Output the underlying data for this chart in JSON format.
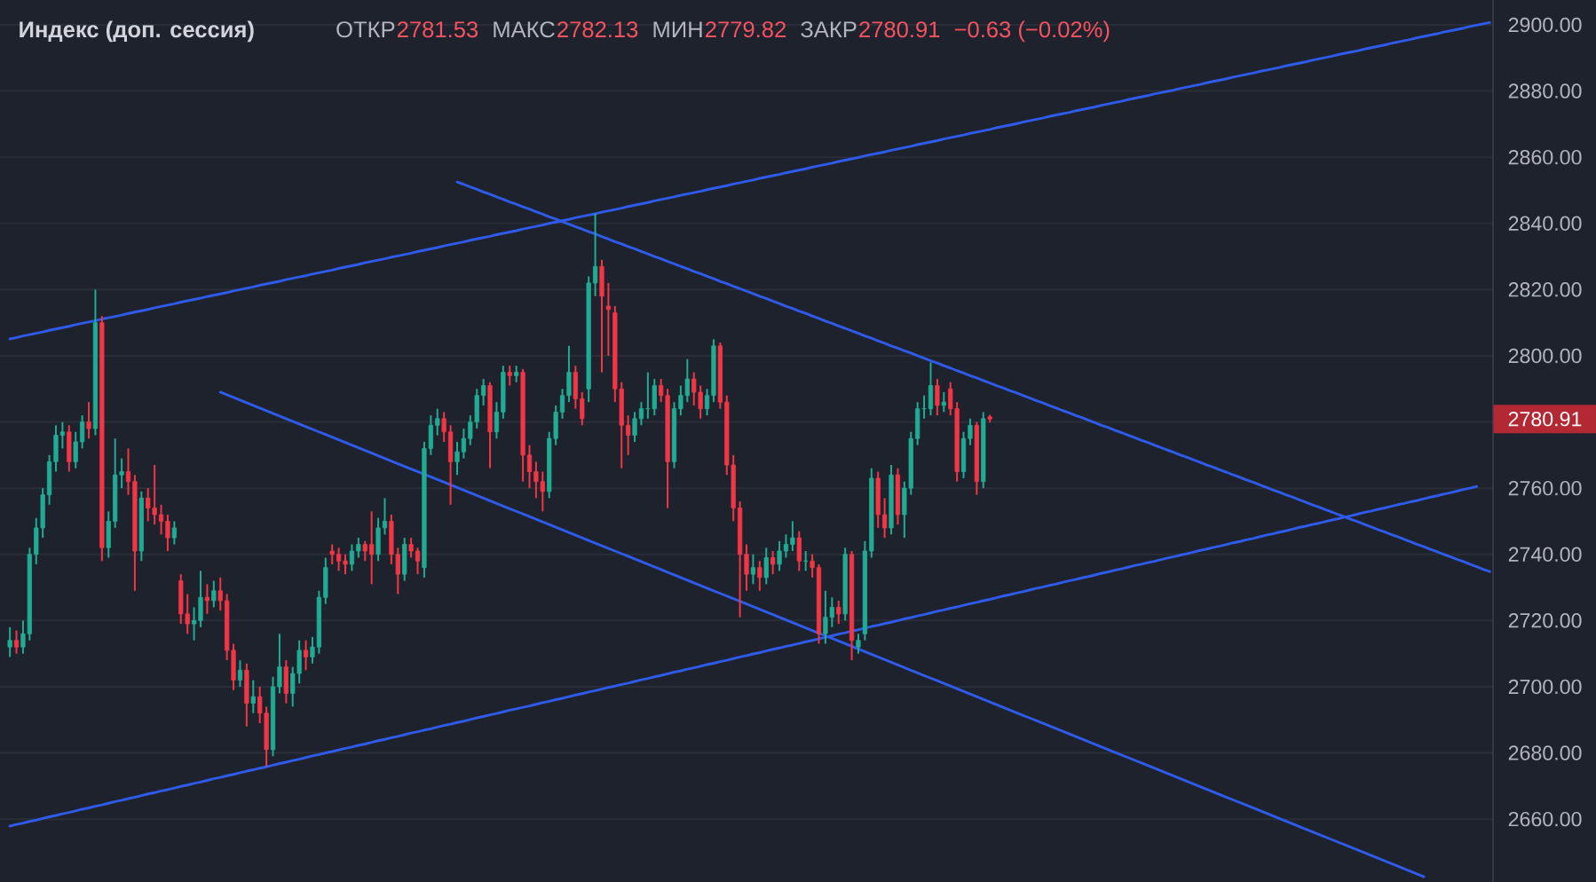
{
  "chart_data": {
    "type": "candlestick",
    "title": "Индекс (доп. сессия)",
    "annotations": [
      "ОТКР",
      "2781.53",
      "МАКС",
      "2782.13",
      "МИН",
      "2779.82",
      "ЗАКР",
      "2780.91",
      "−0.63 (−0.02%)",
      "2780.91"
    ],
    "categories": [
      null,
      null,
      null,
      null,
      null,
      null,
      null,
      null,
      null,
      null,
      null,
      null,
      null,
      null,
      null,
      null,
      null,
      null,
      null,
      null,
      null,
      null,
      null,
      null,
      null,
      null,
      null,
      null,
      null,
      null,
      null,
      null,
      null,
      null,
      null,
      null,
      null,
      null,
      null,
      null,
      null,
      null,
      null,
      null,
      null,
      null,
      null,
      null,
      null,
      null,
      null,
      null,
      null,
      null,
      null,
      null,
      null,
      null,
      null,
      null,
      null,
      null,
      null,
      null,
      null,
      null,
      null,
      null,
      null,
      null,
      null,
      null,
      null,
      null,
      null,
      null,
      null,
      null,
      null,
      null,
      null,
      null,
      null,
      null,
      null,
      null,
      null,
      null,
      null,
      null,
      null,
      null,
      null,
      null,
      null,
      null,
      null,
      null,
      null,
      null,
      null,
      null,
      null,
      null,
      null,
      null,
      null,
      null,
      null,
      null,
      null,
      null,
      null,
      null,
      null,
      null,
      null,
      null,
      null,
      null,
      null,
      null,
      null,
      null,
      null,
      null,
      null,
      null,
      null,
      null,
      null,
      null,
      null,
      null,
      null,
      null,
      null,
      null,
      null,
      null,
      null,
      null,
      null,
      null,
      null,
      null,
      null,
      null,
      null,
      null,
      null,
      null,
      null,
      null,
      null,
      null,
      null,
      null,
      null,
      null,
      null,
      null,
      null,
      null,
      null,
      null,
      null,
      null,
      null,
      null,
      null,
      null,
      null,
      null,
      null,
      null,
      null,
      null,
      null,
      null,
      null,
      null,
      null,
      null,
      null,
      null,
      null,
      null,
      null,
      null,
      null,
      null,
      null,
      null,
      null,
      null,
      null,
      null,
      null,
      null,
      null,
      null,
      null,
      null,
      null,
      null,
      null,
      null,
      null,
      null,
      null,
      null,
      null,
      null,
      null,
      null,
      null,
      null,
      null,
      null,
      null,
      null,
      null,
      null,
      null,
      null,
      null
    ],
    "ohlc": [
      null,
      [
        2712,
        2718,
        2709,
        2714
      ],
      [
        2714,
        2717,
        2710,
        2712
      ],
      [
        2712,
        2720,
        2710,
        2716
      ],
      [
        2716,
        2742,
        2714,
        2740
      ],
      [
        2740,
        2751,
        2737,
        2748
      ],
      [
        2748,
        2760,
        2745,
        2758
      ],
      [
        2758,
        2770,
        2755,
        2768
      ],
      [
        2768,
        2779,
        2765,
        2776
      ],
      [
        2776,
        2780,
        2772,
        2777
      ],
      [
        2777,
        2779,
        2765,
        2768
      ],
      [
        2768,
        2777,
        2766,
        2774
      ],
      [
        2774,
        2782,
        2772,
        2780
      ],
      [
        2780,
        2786,
        2775,
        2778
      ],
      [
        2778,
        2820,
        2776,
        2810
      ],
      [
        2810,
        2812,
        2738,
        2742
      ],
      [
        2742,
        2753,
        2739,
        2750
      ],
      [
        2750,
        2775,
        2748,
        2764
      ],
      [
        2764,
        2769,
        2760,
        2765
      ],
      [
        2765,
        2772,
        2758,
        2762
      ],
      [
        2762,
        2764,
        2729,
        2741
      ],
      [
        2741,
        2759,
        2738,
        2757
      ],
      [
        2757,
        2760,
        2750,
        2754
      ],
      [
        2754,
        2767,
        2749,
        2752
      ],
      [
        2752,
        2755,
        2746,
        2750
      ],
      [
        2750,
        2752,
        2741,
        2745
      ],
      [
        2745,
        2750,
        2743,
        2748
      ],
      [
        2732,
        2734,
        2719,
        2722
      ],
      [
        2722,
        2728,
        2716,
        2719
      ],
      [
        2719,
        2724,
        2714,
        2720
      ],
      [
        2720,
        2735,
        2718,
        2727
      ],
      [
        2727,
        2731,
        2722,
        2726
      ],
      [
        2726,
        2732,
        2724,
        2729
      ],
      [
        2729,
        2733,
        2723,
        2726
      ],
      [
        2726,
        2728,
        2708,
        2711
      ],
      [
        2711,
        2713,
        2699,
        2702
      ],
      [
        2702,
        2708,
        2700,
        2705
      ],
      [
        2705,
        2707,
        2688,
        2695
      ],
      [
        2695,
        2702,
        2692,
        2697
      ],
      [
        2697,
        2700,
        2689,
        2692
      ],
      [
        2692,
        2694,
        2676,
        2681
      ],
      [
        2681,
        2703,
        2679,
        2700
      ],
      [
        2700,
        2716,
        2698,
        2706
      ],
      [
        2706,
        2708,
        2695,
        2698
      ],
      [
        2698,
        2706,
        2694,
        2704
      ],
      [
        2704,
        2714,
        2701,
        2711
      ],
      [
        2711,
        2714,
        2705,
        2709
      ],
      [
        2709,
        2715,
        2707,
        2712
      ],
      [
        2712,
        2729,
        2710,
        2727
      ],
      [
        2727,
        2739,
        2725,
        2736
      ],
      [
        2741,
        2743,
        2737,
        2740
      ],
      [
        2740,
        2742,
        2735,
        2738
      ],
      [
        2738,
        2740,
        2734,
        2737
      ],
      [
        2737,
        2743,
        2735,
        2741
      ],
      [
        2741,
        2745,
        2739,
        2743
      ],
      [
        2743,
        2744,
        2738,
        2741
      ],
      [
        2743,
        2753,
        2731,
        2740
      ],
      [
        2740,
        2751,
        2738,
        2748
      ],
      [
        2748,
        2757,
        2746,
        2750
      ],
      [
        2750,
        2752,
        2737,
        2740
      ],
      [
        2740,
        2742,
        2728,
        2734
      ],
      [
        2734,
        2745,
        2732,
        2743
      ],
      [
        2743,
        2745,
        2739,
        2741
      ],
      [
        2741,
        2742,
        2734,
        2738
      ],
      [
        2736,
        2774,
        2733,
        2772
      ],
      [
        2772,
        2782,
        2770,
        2779
      ],
      [
        2779,
        2784,
        2776,
        2781
      ],
      [
        2781,
        2783,
        2774,
        2777
      ],
      [
        2777,
        2779,
        2755,
        2768
      ],
      [
        2768,
        2774,
        2764,
        2771
      ],
      [
        2771,
        2778,
        2769,
        2775
      ],
      [
        2775,
        2782,
        2773,
        2780
      ],
      [
        2780,
        2790,
        2778,
        2788
      ],
      [
        2788,
        2793,
        2785,
        2791
      ],
      [
        2791,
        2792,
        2766,
        2777
      ],
      [
        2777,
        2786,
        2775,
        2783
      ],
      [
        2783,
        2797,
        2781,
        2795
      ],
      [
        2795,
        2797,
        2791,
        2794
      ],
      [
        2794,
        2797,
        2792,
        2795
      ],
      [
        2795,
        2796,
        2762,
        2770
      ],
      [
        2770,
        2773,
        2760,
        2765
      ],
      [
        2765,
        2768,
        2757,
        2762
      ],
      [
        2762,
        2765,
        2753,
        2759
      ],
      [
        2759,
        2777,
        2757,
        2775
      ],
      [
        2775,
        2785,
        2773,
        2783
      ],
      [
        2783,
        2790,
        2781,
        2788
      ],
      [
        2788,
        2803,
        2786,
        2795
      ],
      [
        2795,
        2797,
        2784,
        2787
      ],
      [
        2787,
        2789,
        2779,
        2781
      ],
      [
        2790,
        2824,
        2786,
        2822
      ],
      [
        2822,
        2843,
        2818,
        2827
      ],
      [
        2827,
        2829,
        2795,
        2818
      ],
      [
        2815,
        2822,
        2800,
        2814
      ],
      [
        2813,
        2815,
        2786,
        2790
      ],
      [
        2790,
        2792,
        2766,
        2779
      ],
      [
        2779,
        2782,
        2770,
        2776
      ],
      [
        2776,
        2783,
        2774,
        2781
      ],
      [
        2781,
        2786,
        2779,
        2784
      ],
      [
        2784,
        2795,
        2781,
        2784
      ],
      [
        2784,
        2793,
        2782,
        2791
      ],
      [
        2791,
        2793,
        2786,
        2788
      ],
      [
        2788,
        2790,
        2754,
        2768
      ],
      [
        2768,
        2786,
        2766,
        2784
      ],
      [
        2784,
        2791,
        2782,
        2788
      ],
      [
        2788,
        2799,
        2786,
        2793
      ],
      [
        2793,
        2795,
        2785,
        2789
      ],
      [
        2789,
        2791,
        2781,
        2784
      ],
      [
        2784,
        2790,
        2782,
        2788
      ],
      [
        2788,
        2805,
        2786,
        2803
      ],
      [
        2803,
        2804,
        2784,
        2786
      ],
      [
        2786,
        2788,
        2764,
        2767
      ],
      [
        2767,
        2770,
        2750,
        2754
      ],
      [
        2754,
        2756,
        2721,
        2740
      ],
      [
        2740,
        2743,
        2729,
        2734
      ],
      [
        2734,
        2740,
        2731,
        2736
      ],
      [
        2736,
        2738,
        2729,
        2733
      ],
      [
        2733,
        2742,
        2731,
        2739
      ],
      [
        2739,
        2741,
        2734,
        2737
      ],
      [
        2737,
        2744,
        2735,
        2741
      ],
      [
        2741,
        2746,
        2739,
        2743
      ],
      [
        2743,
        2750,
        2741,
        2745
      ],
      [
        2745,
        2747,
        2735,
        2738
      ],
      [
        2738,
        2741,
        2735,
        2738
      ],
      [
        2738,
        2740,
        2733,
        2736
      ],
      [
        2736,
        2737,
        2713,
        2716
      ],
      [
        2716,
        2729,
        2713,
        2721
      ],
      [
        2721,
        2727,
        2718,
        2724
      ],
      [
        2724,
        2726,
        2719,
        2722
      ],
      [
        2722,
        2742,
        2720,
        2740
      ],
      [
        2740,
        2741,
        2708,
        2714
      ],
      [
        2712,
        2716,
        2710,
        2714
      ],
      [
        2716,
        2744,
        2714,
        2741
      ],
      [
        2741,
        2766,
        2739,
        2763
      ],
      [
        2763,
        2765,
        2748,
        2752
      ],
      [
        2752,
        2757,
        2745,
        2748
      ],
      [
        2748,
        2767,
        2746,
        2764
      ],
      [
        2764,
        2766,
        2749,
        2752
      ],
      [
        2752,
        2762,
        2745,
        2760
      ],
      [
        2760,
        2777,
        2758,
        2775
      ],
      [
        2775,
        2786,
        2773,
        2784
      ],
      [
        2784,
        2788,
        2781,
        2784
      ],
      [
        2784,
        2798,
        2782,
        2791
      ],
      [
        2791,
        2793,
        2782,
        2785
      ],
      [
        2785,
        2789,
        2783,
        2786
      ],
      [
        2790,
        2792,
        2782,
        2784
      ],
      [
        2784,
        2786,
        2762,
        2765
      ],
      [
        2765,
        2777,
        2763,
        2775
      ],
      [
        2775,
        2781,
        2773,
        2779
      ],
      [
        2779,
        2780,
        2758,
        2762
      ],
      [
        2762,
        2783,
        2760,
        2781
      ],
      [
        2781.53,
        2782.13,
        2779.82,
        2780.91
      ],
      null,
      null,
      null,
      null,
      null,
      null,
      null,
      null,
      null,
      null,
      null,
      null,
      null,
      null,
      null,
      null,
      null,
      null,
      null,
      null,
      null,
      null,
      null,
      null,
      null,
      null,
      null,
      null,
      null,
      null,
      null,
      null,
      null,
      null,
      null,
      null,
      null,
      null,
      null,
      null,
      null,
      null,
      null,
      null,
      null,
      null,
      null,
      null,
      null,
      null,
      null,
      null,
      null,
      null,
      null,
      null,
      null,
      null,
      null,
      null,
      null,
      null,
      null,
      null,
      null,
      null,
      null,
      null,
      null,
      null,
      null,
      null,
      null,
      null,
      null,
      null
    ],
    "colors": [
      null,
      "#22ab94",
      "#f23645",
      "#22ab94",
      "#22ab94",
      "#22ab94",
      "#22ab94",
      "#22ab94",
      "#22ab94",
      "#22ab94",
      "#f23645",
      "#22ab94",
      "#22ab94",
      "#f23645",
      "#22ab94",
      "#f23645",
      "#22ab94",
      "#22ab94",
      "#22ab94",
      "#f23645",
      "#f23645",
      "#22ab94",
      "#f23645",
      "#f23645",
      "#f23645",
      "#f23645",
      "#22ab94",
      "#f23645",
      "#f23645",
      "#22ab94",
      "#22ab94",
      "#f23645",
      "#22ab94",
      "#f23645",
      "#f23645",
      "#f23645",
      "#22ab94",
      "#f23645",
      "#22ab94",
      "#f23645",
      "#f23645",
      "#22ab94",
      "#22ab94",
      "#f23645",
      "#22ab94",
      "#22ab94",
      "#f23645",
      "#22ab94",
      "#22ab94",
      "#22ab94",
      "#f23645",
      "#f23645",
      "#f23645",
      "#22ab94",
      "#22ab94",
      "#f23645",
      "#f23645",
      "#22ab94",
      "#22ab94",
      "#f23645",
      "#f23645",
      "#22ab94",
      "#f23645",
      "#f23645",
      "#22ab94",
      "#22ab94",
      "#22ab94",
      "#f23645",
      "#f23645",
      "#22ab94",
      "#22ab94",
      "#22ab94",
      "#22ab94",
      "#22ab94",
      "#f23645",
      "#22ab94",
      "#22ab94",
      "#f23645",
      "#22ab94",
      "#f23645",
      "#f23645",
      "#f23645",
      "#f23645",
      "#22ab94",
      "#22ab94",
      "#22ab94",
      "#22ab94",
      "#f23645",
      "#f23645",
      "#22ab94",
      "#22ab94",
      "#f23645",
      "#f23645",
      "#f23645",
      "#f23645",
      "#f23645",
      "#22ab94",
      "#22ab94",
      "#22ab94",
      "#22ab94",
      "#f23645",
      "#f23645",
      "#22ab94",
      "#22ab94",
      "#22ab94",
      "#f23645",
      "#f23645",
      "#22ab94",
      "#22ab94",
      "#f23645",
      "#f23645",
      "#f23645",
      "#f23645",
      "#f23645",
      "#22ab94",
      "#f23645",
      "#22ab94",
      "#f23645",
      "#22ab94",
      "#22ab94",
      "#22ab94",
      "#f23645",
      "#22ab94",
      "#f23645",
      "#f23645",
      "#22ab94",
      "#22ab94",
      "#f23645",
      "#22ab94",
      "#f23645",
      "#22ab94",
      "#22ab94",
      "#22ab94",
      "#f23645",
      "#f23645",
      "#22ab94",
      "#f23645",
      "#22ab94",
      "#22ab94",
      "#22ab94",
      "#22ab94",
      "#22ab94",
      "#f23645",
      "#22ab94",
      "#f23645",
      "#f23645",
      "#22ab94",
      "#22ab94",
      "#f23645",
      "#22ab94",
      "#f23645",
      null,
      null,
      null,
      null,
      null,
      null,
      null,
      null,
      null,
      null,
      null,
      null,
      null,
      null,
      null,
      null,
      null,
      null,
      null,
      null,
      null,
      null,
      null,
      null,
      null,
      null,
      null,
      null,
      null,
      null,
      null,
      null,
      null,
      null,
      null,
      null,
      null,
      null,
      null,
      null,
      null,
      null,
      null,
      null,
      null,
      null,
      null,
      null,
      null,
      null,
      null,
      null,
      null,
      null,
      null,
      null,
      null,
      null,
      null,
      null,
      null,
      null,
      null,
      null,
      null,
      null,
      null,
      null,
      null,
      null,
      null,
      null,
      null,
      null,
      null,
      null
    ],
    "series": [
      {
        "type": "line",
        "color": "#2f5bea",
        "values": [
          null,
          2805.1,
          2805.5,
          2806.0,
          2806.4,
          2806.8,
          2807.2,
          2807.7,
          2808.1,
          2808.5,
          2808.9,
          2809.4,
          2809.8,
          2810.2,
          2810.6,
          2811.1,
          2811.5,
          2811.9,
          2812.3,
          2812.8,
          2813.2,
          2813.6,
          2814.0,
          2814.5,
          2814.9,
          2815.3,
          2815.7,
          2816.2,
          2816.6,
          2817.0,
          2817.4,
          2817.9,
          2818.3,
          2818.7,
          2819.1,
          2819.6,
          2820.0,
          2820.4,
          2820.8,
          2821.3,
          2821.7,
          2822.1,
          2822.5,
          2823.0,
          2823.4,
          2823.8,
          2824.2,
          2824.7,
          2825.1,
          2825.5,
          2825.9,
          2826.4,
          2826.8,
          2827.2,
          2827.6,
          2828.1,
          2828.5,
          2828.9,
          2829.3,
          2829.8,
          2830.2,
          2830.6,
          2831.0,
          2831.5,
          2831.9,
          2832.3,
          2832.7,
          2833.2,
          2833.6,
          2834.0,
          2834.4,
          2834.9,
          2835.3,
          2835.7,
          2836.1,
          2836.6,
          2837.0,
          2837.4,
          2837.8,
          2838.3,
          2838.7,
          2839.1,
          2839.5,
          2840.0,
          2840.4,
          2840.8,
          2841.2,
          2841.7,
          2842.1,
          2842.5,
          2842.9,
          2843.4,
          2843.8,
          2844.2,
          2844.6,
          2845.1,
          2845.5,
          2845.9,
          2846.3,
          2846.8,
          2847.2,
          2847.6,
          2848.0,
          2848.5,
          2848.9,
          2849.3,
          2849.7,
          2850.2,
          2850.6,
          2851.0,
          2851.4,
          2851.9,
          2852.3,
          2852.7,
          2853.1,
          2853.6,
          2854.0,
          2854.4,
          2854.8,
          2855.3,
          2855.7,
          2856.1,
          2856.5,
          2857.0,
          2857.4,
          2857.8,
          2858.2,
          2858.7,
          2859.1,
          2859.5,
          2859.9,
          2860.4,
          2860.8,
          2861.2,
          2861.6,
          2862.1,
          2862.5,
          2862.9,
          2863.3,
          2863.8,
          2864.2,
          2864.6,
          2865.0,
          2865.5,
          2865.9,
          2866.3,
          2866.7,
          2867.2,
          2867.6,
          2868.0,
          2868.4,
          2868.9,
          2869.3,
          2869.7,
          2870.1,
          2870.6,
          2871.0,
          2871.4,
          2871.8,
          2872.3,
          2872.7,
          2873.1,
          2873.5,
          2874.0,
          2874.4,
          2874.8,
          2875.2,
          2875.7,
          2876.1,
          2876.5,
          2876.9,
          2877.4,
          2877.8,
          2878.2,
          2878.6,
          2879.1,
          2879.5,
          2879.9,
          2880.3,
          2880.8,
          2881.2,
          2881.6,
          2882.0,
          2882.5,
          2882.9,
          2883.3,
          2883.7,
          2884.2,
          2884.6,
          2885.0,
          2885.4,
          2885.9,
          2886.3,
          2886.7,
          2887.1,
          2887.6,
          2888.0,
          2888.4,
          2888.8,
          2889.3,
          2889.7,
          2890.1,
          2890.5,
          2891.0,
          2891.4,
          2891.8,
          2892.2,
          2892.7,
          2893.1,
          2893.5,
          2893.9,
          2894.4,
          2894.8,
          2895.2,
          2895.6,
          2896.1,
          2896.5,
          2896.9,
          2897.3,
          2897.8,
          2898.2,
          2898.6,
          2899.0,
          2899.5,
          2899.9,
          2900.3,
          2900.7
        ]
      },
      {
        "type": "line",
        "color": "#2f5bea",
        "values": [
          null,
          null,
          null,
          null,
          null,
          null,
          null,
          null,
          null,
          null,
          null,
          null,
          null,
          null,
          null,
          null,
          null,
          null,
          null,
          null,
          null,
          null,
          null,
          null,
          null,
          null,
          null,
          null,
          null,
          null,
          null,
          null,
          null,
          null,
          null,
          null,
          null,
          null,
          null,
          null,
          null,
          null,
          null,
          null,
          null,
          null,
          null,
          null,
          null,
          null,
          null,
          null,
          null,
          null,
          null,
          null,
          null,
          null,
          null,
          null,
          null,
          null,
          null,
          null,
          null,
          null,
          null,
          null,
          null,
          2852.5,
          2851.8,
          2851.0,
          2850.3,
          2849.5,
          2848.8,
          2848.0,
          2847.3,
          2846.5,
          2845.8,
          2845.0,
          2844.3,
          2843.5,
          2842.8,
          2842.0,
          2841.3,
          2840.5,
          2839.8,
          2839.0,
          2838.3,
          2837.5,
          2836.8,
          2836.0,
          2835.3,
          2834.5,
          2833.8,
          2833.0,
          2832.3,
          2831.5,
          2830.8,
          2830.0,
          2829.3,
          2828.5,
          2827.8,
          2827.0,
          2826.3,
          2825.5,
          2824.8,
          2824.0,
          2823.3,
          2822.5,
          2821.8,
          2821.0,
          2820.3,
          2819.5,
          2818.8,
          2818.0,
          2817.3,
          2816.5,
          2815.8,
          2815.0,
          2814.3,
          2813.5,
          2812.8,
          2812.0,
          2811.3,
          2810.5,
          2809.8,
          2809.0,
          2808.3,
          2807.5,
          2806.8,
          2806.0,
          2805.3,
          2804.5,
          2803.8,
          2803.0,
          2802.3,
          2801.5,
          2800.8,
          2800.0,
          2799.3,
          2798.5,
          2797.8,
          2797.0,
          2796.3,
          2795.5,
          2794.8,
          2794.0,
          2793.3,
          2792.5,
          2791.8,
          2791.0,
          2790.3,
          2789.5,
          2788.8,
          2788.0,
          2787.3,
          2786.5,
          2785.8,
          2785.0,
          2784.3,
          2783.5,
          2782.8,
          2782.0,
          2781.3,
          2780.5,
          2779.8,
          2779.0,
          2778.3,
          2777.5,
          2776.8,
          2776.0,
          2775.3,
          2774.5,
          2773.8,
          2773.0,
          2772.3,
          2771.5,
          2770.8,
          2770.0,
          2769.3,
          2768.5,
          2767.8,
          2767.0,
          2766.3,
          2765.5,
          2764.8,
          2764.0,
          2763.3,
          2762.5,
          2761.8,
          2761.0,
          2760.3,
          2759.5,
          2758.8,
          2758.0,
          2757.3,
          2756.5,
          2755.8,
          2755.0,
          2754.3,
          2753.5,
          2752.8,
          2752.0,
          2751.3,
          2750.5,
          2749.8,
          2749.0,
          2748.3,
          2747.5,
          2746.8,
          2746.0,
          2745.3,
          2744.5,
          2743.8,
          2743.0,
          2742.3,
          2741.5,
          2740.8,
          2740.0,
          2739.3,
          2738.5,
          2737.8,
          2737.0,
          2736.3,
          2735.5,
          2734.8
        ]
      },
      {
        "type": "line",
        "color": "#2f5bea",
        "values": [
          null,
          null,
          null,
          null,
          null,
          null,
          null,
          null,
          null,
          null,
          null,
          null,
          null,
          null,
          null,
          null,
          null,
          null,
          null,
          null,
          null,
          null,
          null,
          null,
          null,
          null,
          null,
          null,
          null,
          null,
          null,
          null,
          null,
          2789.0,
          2788.2,
          2787.4,
          2786.6,
          2785.8,
          2785.0,
          2784.2,
          2783.4,
          2782.6,
          2781.8,
          2781.0,
          2780.2,
          2779.4,
          2778.6,
          2777.8,
          2777.0,
          2776.2,
          2775.4,
          2774.6,
          2773.8,
          2773.0,
          2772.2,
          2771.4,
          2770.6,
          2769.8,
          2769.0,
          2768.2,
          2767.4,
          2766.6,
          2765.8,
          2765.0,
          2764.2,
          2763.4,
          2762.6,
          2761.8,
          2761.0,
          2760.2,
          2759.4,
          2758.6,
          2757.8,
          2757.0,
          2756.2,
          2755.4,
          2754.6,
          2753.8,
          2753.0,
          2752.2,
          2751.4,
          2750.6,
          2749.8,
          2749.0,
          2748.2,
          2747.4,
          2746.6,
          2745.8,
          2745.0,
          2744.2,
          2743.4,
          2742.6,
          2741.8,
          2741.0,
          2740.2,
          2739.4,
          2738.6,
          2737.8,
          2737.0,
          2736.2,
          2735.4,
          2734.6,
          2733.8,
          2733.0,
          2732.2,
          2731.4,
          2730.6,
          2729.8,
          2729.0,
          2728.2,
          2727.4,
          2726.6,
          2725.8,
          2725.0,
          2724.2,
          2723.4,
          2722.6,
          2721.8,
          2721.0,
          2720.2,
          2719.4,
          2718.6,
          2717.8,
          2717.0,
          2716.2,
          2715.4,
          2714.6,
          2713.8,
          2713.0,
          2712.2,
          2711.4,
          2710.6,
          2709.8,
          2709.0,
          2708.2,
          2707.4,
          2706.6,
          2705.8,
          2705.0,
          2704.2,
          2703.4,
          2702.6,
          2701.8,
          2701.0,
          2700.2,
          2699.4,
          2698.6,
          2697.8,
          2697.0,
          2696.2,
          2695.4,
          2694.6,
          2693.8,
          2693.0,
          2692.2,
          2691.4,
          2690.6,
          2689.8,
          2689.0,
          2688.2,
          2687.4,
          2686.6,
          2685.8,
          2685.0,
          2684.2,
          2683.4,
          2682.6,
          2681.8,
          2681.0,
          2680.2,
          2679.4,
          2678.6,
          2677.8,
          2677.0,
          2676.2,
          2675.4,
          2674.6,
          2673.8,
          2673.0,
          2672.2,
          2671.4,
          2670.6,
          2669.8,
          2669.0,
          2668.2,
          2667.4,
          2666.6,
          2665.8,
          2665.0,
          2664.2,
          2663.4,
          2662.6,
          2661.8,
          2661.0,
          2660.2,
          2659.4,
          2658.6,
          2657.8,
          2657.0,
          2656.2,
          2655.4,
          2654.6,
          2653.8,
          2653.0,
          2652.2,
          2651.4,
          2650.6,
          2649.8,
          2649.0,
          2648.2,
          2647.4,
          2646.6,
          2645.8,
          2645.0,
          2644.2,
          2643.4,
          2642.6,
          null,
          null,
          null,
          null,
          null,
          null,
          null,
          null,
          null,
          null
        ]
      },
      {
        "type": "line",
        "color": "#2f5bea",
        "values": [
          null,
          2657.9,
          2658.4,
          2658.8,
          2659.3,
          2659.7,
          2660.2,
          2660.7,
          2661.1,
          2661.6,
          2662.0,
          2662.5,
          2663.0,
          2663.4,
          2663.9,
          2664.3,
          2664.8,
          2665.3,
          2665.7,
          2666.2,
          2666.6,
          2667.1,
          2667.6,
          2668.0,
          2668.5,
          2668.9,
          2669.4,
          2669.9,
          2670.3,
          2670.8,
          2671.2,
          2671.7,
          2672.2,
          2672.6,
          2673.1,
          2673.5,
          2674.0,
          2674.5,
          2674.9,
          2675.4,
          2675.8,
          2676.3,
          2676.8,
          2677.2,
          2677.7,
          2678.1,
          2678.6,
          2679.1,
          2679.5,
          2680.0,
          2680.4,
          2680.9,
          2681.4,
          2681.8,
          2682.3,
          2682.7,
          2683.2,
          2683.7,
          2684.1,
          2684.6,
          2685.0,
          2685.5,
          2686.0,
          2686.4,
          2686.9,
          2687.3,
          2687.8,
          2688.3,
          2688.7,
          2689.2,
          2689.6,
          2690.1,
          2690.6,
          2691.0,
          2691.5,
          2691.9,
          2692.4,
          2692.9,
          2693.3,
          2693.8,
          2694.2,
          2694.7,
          2695.2,
          2695.6,
          2696.1,
          2696.5,
          2697.0,
          2697.5,
          2697.9,
          2698.4,
          2698.8,
          2699.3,
          2699.8,
          2700.2,
          2700.7,
          2701.1,
          2701.6,
          2702.1,
          2702.5,
          2703.0,
          2703.4,
          2703.9,
          2704.4,
          2704.8,
          2705.3,
          2705.7,
          2706.2,
          2706.7,
          2707.1,
          2707.6,
          2708.0,
          2708.5,
          2709.0,
          2709.4,
          2709.9,
          2710.3,
          2710.8,
          2711.3,
          2711.7,
          2712.2,
          2712.6,
          2713.1,
          2713.6,
          2714.0,
          2714.5,
          2714.9,
          2715.4,
          2715.9,
          2716.3,
          2716.8,
          2717.2,
          2717.7,
          2718.2,
          2718.6,
          2719.1,
          2719.5,
          2720.0,
          2720.5,
          2720.9,
          2721.4,
          2721.8,
          2722.3,
          2722.8,
          2723.2,
          2723.7,
          2724.1,
          2724.6,
          2725.1,
          2725.5,
          2726.0,
          2726.4,
          2726.9,
          2727.4,
          2727.8,
          2728.3,
          2728.7,
          2729.2,
          2729.7,
          2730.1,
          2730.6,
          2731.0,
          2731.5,
          2732.0,
          2732.4,
          2732.9,
          2733.3,
          2733.8,
          2734.3,
          2734.7,
          2735.2,
          2735.6,
          2736.1,
          2736.6,
          2737.0,
          2737.5,
          2737.9,
          2738.4,
          2738.9,
          2739.3,
          2739.8,
          2740.2,
          2740.7,
          2741.2,
          2741.6,
          2742.1,
          2742.5,
          2743.0,
          2743.5,
          2743.9,
          2744.4,
          2744.8,
          2745.3,
          2745.8,
          2746.2,
          2746.7,
          2747.1,
          2747.6,
          2748.1,
          2748.5,
          2749.0,
          2749.4,
          2749.9,
          2750.4,
          2750.8,
          2751.3,
          2751.7,
          2752.2,
          2752.7,
          2753.1,
          2753.6,
          2754.0,
          2754.5,
          2755.0,
          2755.4,
          2755.9,
          2756.3,
          2756.8,
          2757.3,
          2757.7,
          2758.2,
          2758.6,
          2759.1,
          2759.6,
          2760.0,
          2760.5,
          null,
          null
        ]
      }
    ],
    "ylim": [
      2641,
      2907.5
    ],
    "yticks": [
      {
        "value": 2660,
        "label": "2660.00"
      },
      {
        "value": 2680,
        "label": "2680.00"
      },
      {
        "value": 2700,
        "label": "2700.00"
      },
      {
        "value": 2720,
        "label": "2720.00"
      },
      {
        "value": 2740,
        "label": "2740.00"
      },
      {
        "value": 2760,
        "label": "2760.00"
      },
      {
        "value": 2780,
        "label": null
      },
      {
        "value": 2800,
        "label": "2800.00"
      },
      {
        "value": 2820,
        "label": "2820.00"
      },
      {
        "value": 2840,
        "label": "2840.00"
      },
      {
        "value": 2860,
        "label": "2860.00"
      },
      {
        "value": 2880,
        "label": "2880.00"
      },
      {
        "value": 2900,
        "label": "2900.00"
      }
    ],
    "grid": "y",
    "tick_labels": "y"
  }
}
